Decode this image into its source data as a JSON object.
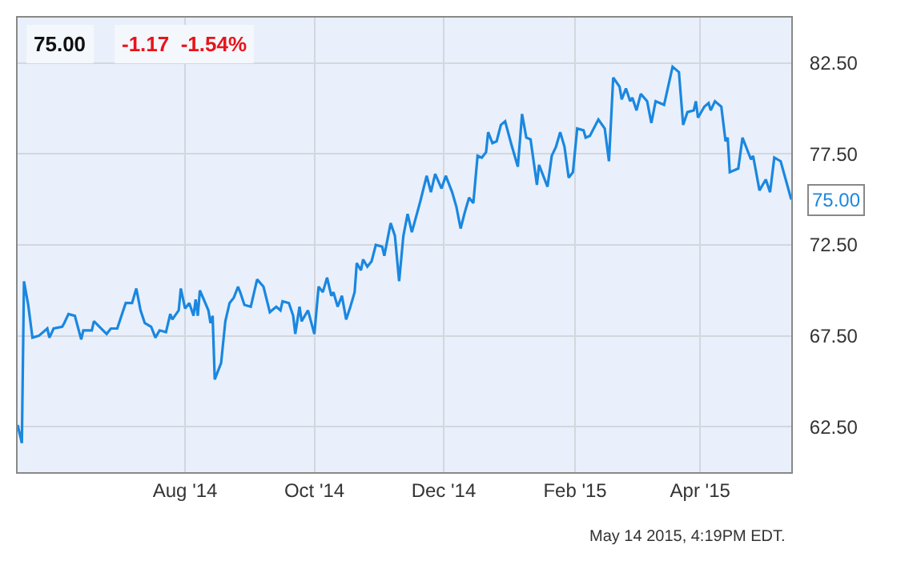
{
  "chart_data": {
    "type": "line",
    "title": "75.00",
    "subtitle": "-1.17  -1.54%",
    "x": [
      "2014-05-14",
      "2014-05-16",
      "2014-05-17",
      "2014-05-19",
      "2014-05-21",
      "2014-05-24",
      "2014-05-28",
      "2014-05-29",
      "2014-05-31",
      "2014-06-04",
      "2014-06-05",
      "2014-06-07",
      "2014-06-10",
      "2014-06-13",
      "2014-06-14",
      "2014-06-18",
      "2014-06-19",
      "2014-06-25",
      "2014-06-27",
      "2014-06-30",
      "2014-07-02",
      "2014-07-04",
      "2014-07-07",
      "2014-07-09",
      "2014-07-11",
      "2014-07-13",
      "2014-07-16",
      "2014-07-18",
      "2014-07-20",
      "2014-07-23",
      "2014-07-25",
      "2014-07-26",
      "2014-07-29",
      "2014-07-30",
      "2014-08-01",
      "2014-08-03",
      "2014-08-05",
      "2014-08-06",
      "2014-08-07",
      "2014-08-08",
      "2014-08-12",
      "2014-08-13",
      "2014-08-14",
      "2014-08-15",
      "2014-08-18",
      "2014-08-20",
      "2014-08-22",
      "2014-08-24",
      "2014-08-26",
      "2014-08-27",
      "2014-08-29",
      "2014-09-01",
      "2014-09-04",
      "2014-09-07",
      "2014-09-10",
      "2014-09-13",
      "2014-09-15",
      "2014-09-16",
      "2014-09-19",
      "2014-09-21",
      "2014-09-22",
      "2014-09-24",
      "2014-09-25",
      "2014-09-28",
      "2014-10-01",
      "2014-10-03",
      "2014-10-05",
      "2014-10-07",
      "2014-10-09",
      "2014-10-10",
      "2014-10-12",
      "2014-10-14",
      "2014-10-16",
      "2014-10-18",
      "2014-10-20",
      "2014-10-21",
      "2014-10-23",
      "2014-10-24",
      "2014-10-26",
      "2014-10-28",
      "2014-10-30",
      "2014-11-02",
      "2014-11-03",
      "2014-11-06",
      "2014-11-08",
      "2014-11-10",
      "2014-11-12",
      "2014-11-14",
      "2014-11-16",
      "2014-11-20",
      "2014-11-23",
      "2014-11-25",
      "2014-11-27",
      "2014-11-30",
      "2014-12-02",
      "2014-12-05",
      "2014-12-07",
      "2014-12-09",
      "2014-12-11",
      "2014-12-13",
      "2014-12-15",
      "2014-12-17",
      "2014-12-19",
      "2014-12-21",
      "2014-12-22",
      "2014-12-24",
      "2014-12-26",
      "2014-12-28",
      "2014-12-30",
      "2015-01-02",
      "2015-01-05",
      "2015-01-07",
      "2015-01-09",
      "2015-01-11",
      "2015-01-14",
      "2015-01-15",
      "2015-01-19",
      "2015-01-21",
      "2015-01-23",
      "2015-01-25",
      "2015-01-27",
      "2015-01-29",
      "2015-01-31",
      "2015-02-02",
      "2015-02-05",
      "2015-02-06",
      "2015-02-08",
      "2015-02-12",
      "2015-02-15",
      "2015-02-17",
      "2015-02-19",
      "2015-02-22",
      "2015-02-23",
      "2015-02-25",
      "2015-02-27",
      "2015-02-28",
      "2015-03-02",
      "2015-03-04",
      "2015-03-07",
      "2015-03-09",
      "2015-03-11",
      "2015-03-15",
      "2015-03-19",
      "2015-03-22",
      "2015-03-24",
      "2015-03-26",
      "2015-03-29",
      "2015-03-30",
      "2015-03-31",
      "2015-04-03",
      "2015-04-05",
      "2015-04-06",
      "2015-04-08",
      "2015-04-11",
      "2015-04-13",
      "2015-04-14",
      "2015-04-15",
      "2015-04-19",
      "2015-04-21",
      "2015-04-25",
      "2015-04-26",
      "2015-04-29",
      "2015-05-02",
      "2015-05-04",
      "2015-05-06",
      "2015-05-09",
      "2015-05-14"
    ],
    "series": [
      {
        "color": "#1a87e0",
        "values": [
          62.6,
          61.6,
          70.5,
          69.2,
          67.4,
          67.5,
          67.9,
          67.4,
          67.9,
          68.0,
          68.2,
          68.7,
          68.6,
          67.3,
          67.8,
          67.8,
          68.3,
          67.6,
          67.9,
          67.9,
          68.6,
          69.3,
          69.3,
          70.1,
          68.9,
          68.2,
          68.0,
          67.4,
          67.8,
          67.7,
          68.7,
          68.4,
          68.9,
          70.1,
          69.0,
          69.3,
          68.6,
          69.5,
          68.6,
          70.0,
          68.9,
          68.2,
          68.6,
          65.1,
          66.0,
          68.3,
          69.3,
          69.6,
          70.2,
          69.9,
          69.2,
          69.1,
          70.6,
          70.2,
          68.8,
          69.1,
          68.9,
          69.4,
          69.3,
          68.6,
          67.6,
          69.1,
          68.3,
          68.9,
          67.6,
          70.2,
          69.9,
          70.7,
          69.7,
          69.9,
          69.1,
          69.7,
          68.4,
          69.1,
          69.9,
          71.5,
          71.1,
          71.7,
          71.3,
          71.6,
          72.5,
          72.4,
          71.9,
          73.7,
          73.0,
          70.5,
          73.0,
          74.2,
          73.2,
          74.9,
          76.3,
          75.4,
          76.4,
          75.6,
          76.3,
          75.4,
          74.6,
          73.4,
          74.3,
          75.1,
          74.8,
          77.4,
          77.3,
          77.6,
          78.7,
          78.1,
          78.2,
          79.1,
          79.3,
          78.0,
          76.8,
          79.7,
          78.4,
          78.3,
          75.8,
          76.9,
          75.7,
          77.4,
          77.9,
          78.7,
          77.9,
          76.2,
          76.5,
          78.9,
          78.8,
          78.4,
          78.5,
          79.4,
          78.9,
          77.1,
          81.7,
          81.2,
          80.5,
          81.1,
          80.4,
          80.6,
          79.9,
          80.8,
          80.4,
          79.2,
          80.4,
          80.2,
          82.3,
          82.0,
          79.1,
          79.8,
          79.9,
          80.4,
          79.5,
          80.1,
          80.3,
          79.9,
          80.4,
          80.1,
          78.2,
          78.4,
          76.5,
          76.7,
          78.4,
          77.2,
          77.4,
          75.5,
          76.1,
          75.4,
          77.3,
          77.1,
          75.0
        ]
      }
    ],
    "xlim": [
      "2014-05-14",
      "2015-05-14"
    ],
    "xticks": [
      {
        "value": "2014-08-01",
        "label": "Aug '14"
      },
      {
        "value": "2014-10-01",
        "label": "Oct '14"
      },
      {
        "value": "2014-12-01",
        "label": "Dec '14"
      },
      {
        "value": "2015-02-01",
        "label": "Feb '15"
      },
      {
        "value": "2015-04-01",
        "label": "Apr '15"
      }
    ],
    "ylim": [
      60,
      85
    ],
    "yticks": [
      {
        "value": 62.5,
        "label": "62.50"
      },
      {
        "value": 67.5,
        "label": "67.50"
      },
      {
        "value": 72.5,
        "label": "72.50"
      },
      {
        "value": 77.5,
        "label": "77.50"
      },
      {
        "value": 82.5,
        "label": "82.50"
      }
    ],
    "grid": true,
    "marker": "none",
    "line_style": "solid",
    "annotations": [
      {
        "text": "75.00",
        "x": "2015-05-14",
        "y": 75.0
      },
      "May 14 2015, 4:19PM EDT."
    ]
  }
}
